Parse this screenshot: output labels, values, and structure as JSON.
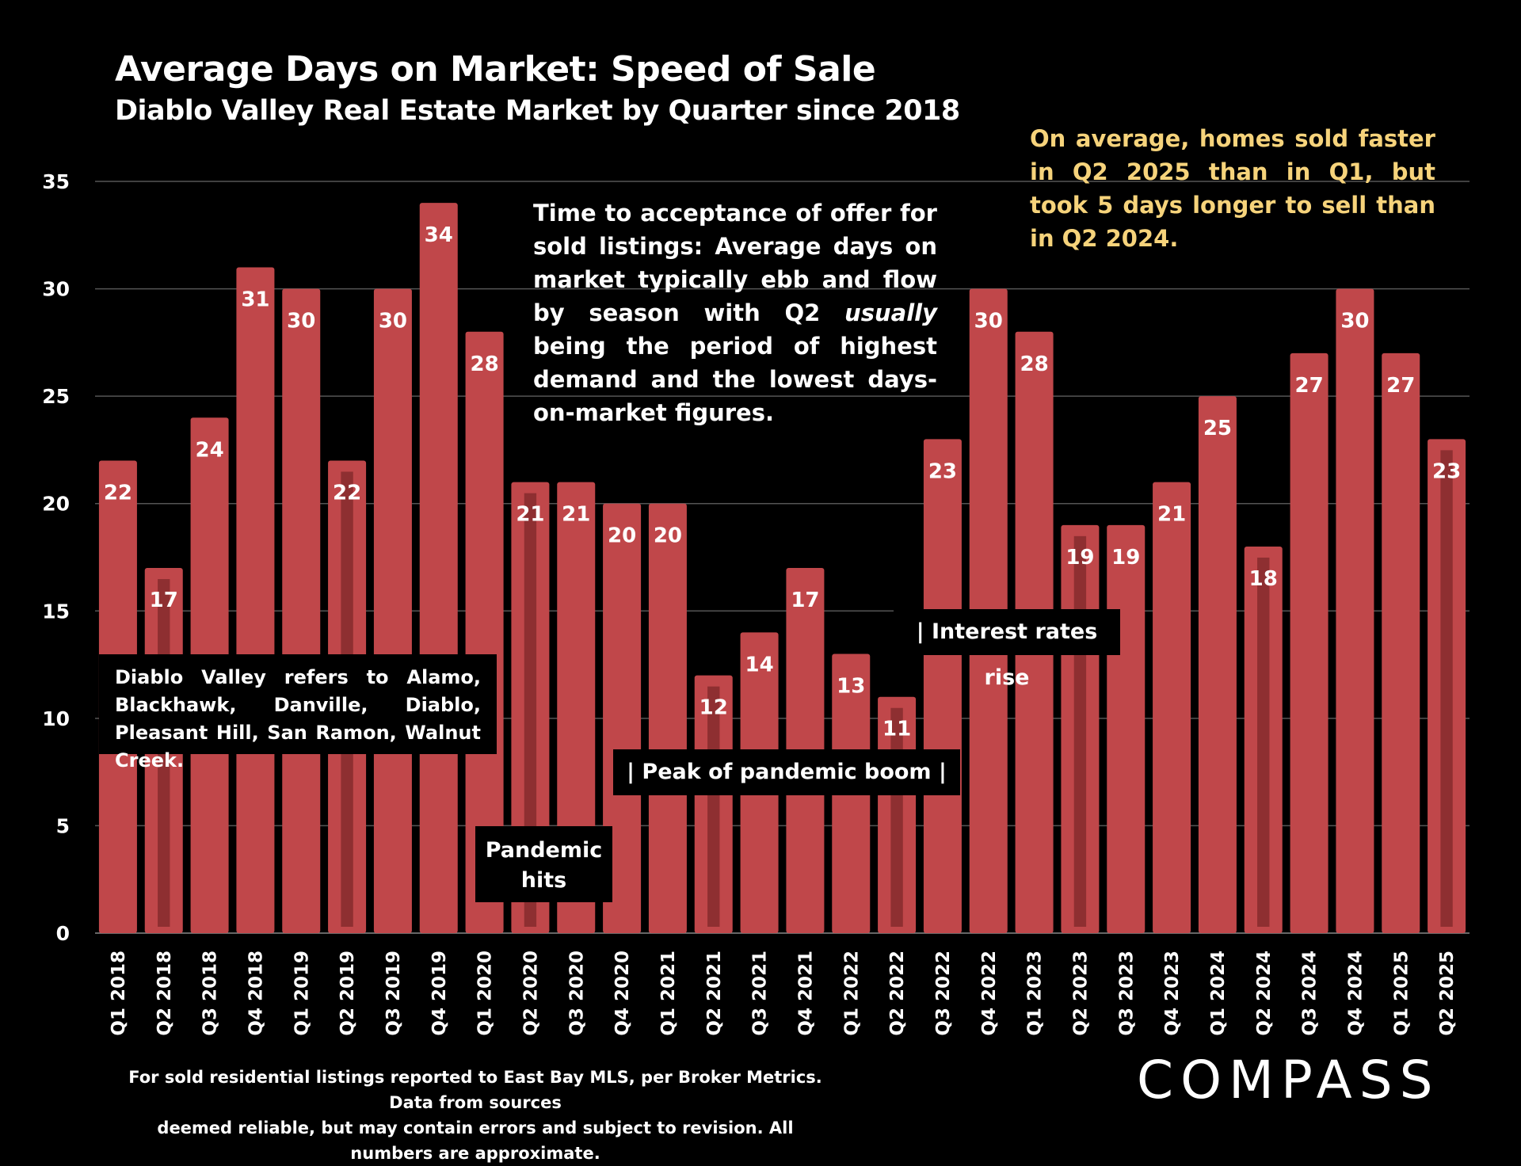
{
  "header": {
    "title": "Average Days on Market: Speed of Sale",
    "subtitle": "Diablo Valley Real Estate Market by Quarter since 2018"
  },
  "annotations": {
    "note_pre": "Time to acceptance of offer for sold listings:  Average days on market typically ebb and flow by season with Q2 ",
    "note_emphasis": "usually",
    "note_post": " being the period of highest demand and the lowest days-on-market figures.",
    "highlight": "On average, homes sold faster in Q2 2025 than in Q1, but took 5 days longer to sell than in Q2 2024.",
    "diablo_valley": "Diablo Valley refers to Alamo, Blackhawk, Danville, Diablo, Pleasant Hill, San Ramon, Walnut Creek.",
    "pandemic_hits_line1": "Pandemic",
    "pandemic_hits_line2": "hits",
    "peak_pandemic": "| Peak of pandemic boom |",
    "interest_rates": "| Interest rates rise"
  },
  "footnote": {
    "line1": "For sold residential listings reported to East Bay MLS, per Broker Metrics. Data from sources",
    "line2": "deemed reliable, but may contain errors and subject to revision. All numbers are approximate."
  },
  "logo": {
    "text": "COMPASS"
  },
  "colors": {
    "bar": "#c0474a",
    "q2_stripe": "#8e2f31",
    "highlight_text": "#f6d37b",
    "gridline": "#555555"
  },
  "chart_data": {
    "type": "bar",
    "categories": [
      "Q1 2018",
      "Q2 2018",
      "Q3 2018",
      "Q4 2018",
      "Q1 2019",
      "Q2 2019",
      "Q3 2019",
      "Q4 2019",
      "Q1 2020",
      "Q2 2020",
      "Q3 2020",
      "Q4 2020",
      "Q1 2021",
      "Q2 2021",
      "Q3 2021",
      "Q4 2021",
      "Q1 2022",
      "Q2 2022",
      "Q3 2022",
      "Q4 2022",
      "Q1 2023",
      "Q2 2023",
      "Q3 2023",
      "Q4 2023",
      "Q1 2024",
      "Q2 2024",
      "Q3 2024",
      "Q4 2024",
      "Q1 2025",
      "Q2 2025"
    ],
    "values": [
      22,
      17,
      24,
      31,
      30,
      22,
      30,
      34,
      28,
      21,
      21,
      20,
      20,
      12,
      14,
      17,
      13,
      11,
      23,
      30,
      28,
      19,
      19,
      21,
      25,
      18,
      27,
      30,
      27,
      23
    ],
    "highlighted_quarter": "Q2",
    "ylim": [
      0,
      35
    ],
    "yticks": [
      0,
      5,
      10,
      15,
      20,
      25,
      30,
      35
    ],
    "grid": true,
    "title": "Average Days on Market: Speed of Sale",
    "subtitle": "Diablo Valley Real Estate Market by Quarter since 2018",
    "xlabel": "",
    "ylabel": ""
  }
}
